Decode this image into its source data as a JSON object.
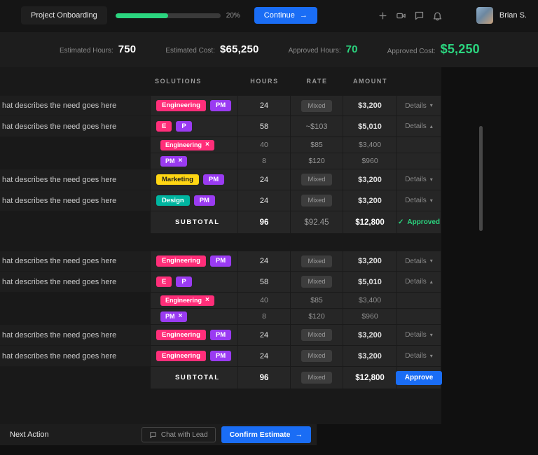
{
  "colors": {
    "accent_green": "#2bd57f",
    "accent_blue": "#1a6df5",
    "tag_pink": "#ff2e79",
    "tag_purple": "#9a3bf2",
    "tag_yellow": "#ffd613",
    "tag_teal": "#00b5a0",
    "badge_bg": "#3d3d3d"
  },
  "glyphs": {
    "arrow": "→",
    "chevron_down": "▾",
    "chevron_up": "▴",
    "close": "×",
    "check": "✓"
  },
  "topbar": {
    "project_label": "Project Onboarding",
    "progress_label": "20%",
    "continue_label": "Continue",
    "user_name": "Brian S."
  },
  "stats": [
    {
      "label": "Estimated Hours:",
      "value": "750"
    },
    {
      "label": "Estimated Cost:",
      "value": "$65,250"
    },
    {
      "label": "Approved Hours:",
      "value": "70"
    },
    {
      "label": "Approved Cost:",
      "value": "$5,250"
    }
  ],
  "table": {
    "headers": [
      "SOLUTIONS",
      "HOURS",
      "RATE",
      "AMOUNT"
    ],
    "groups": [
      {
        "rows": [
          {
            "description": "hat describes the need goes here",
            "tags": [
              {
                "label": "Engineering",
                "color": "pink"
              },
              {
                "label": "PM",
                "color": "purple"
              }
            ],
            "hours": "24",
            "rate": {
              "badge": "Mixed"
            },
            "amount": "$3,200",
            "details": {
              "label": "Details",
              "chevron": "down"
            }
          },
          {
            "description": "hat describes the need goes here",
            "tags": [
              {
                "label": "E",
                "color": "pink"
              },
              {
                "label": "P",
                "color": "purple"
              }
            ],
            "hours": "58",
            "rate": {
              "text": "~$103"
            },
            "amount": "$5,010",
            "details": {
              "label": "Details",
              "chevron": "up"
            },
            "subrows": [
              {
                "tag": {
                  "label": "Engineering",
                  "color": "pink",
                  "removable": true
                },
                "hours": "40",
                "rate": "$85",
                "amount": "$3,400"
              },
              {
                "tag": {
                  "label": "PM",
                  "color": "purple",
                  "removable": true
                },
                "hours": "8",
                "rate": "$120",
                "amount": "$960"
              }
            ]
          },
          {
            "description": "hat describes the need goes here",
            "tags": [
              {
                "label": "Marketing",
                "color": "yellow"
              },
              {
                "label": "PM",
                "color": "purple"
              }
            ],
            "hours": "24",
            "rate": {
              "badge": "Mixed"
            },
            "amount": "$3,200",
            "details": {
              "label": "Details",
              "chevron": "down"
            }
          },
          {
            "description": "hat describes the need goes here",
            "tags": [
              {
                "label": "Design",
                "color": "teal"
              },
              {
                "label": "PM",
                "color": "purple"
              }
            ],
            "hours": "24",
            "rate": {
              "badge": "Mixed"
            },
            "amount": "$3,200",
            "details": {
              "label": "Details",
              "chevron": "down"
            }
          }
        ],
        "subtotal": {
          "label": "SUBTOTAL",
          "hours": "96",
          "rate": {
            "text": "$92.45"
          },
          "amount": "$12,800",
          "status": "Approved"
        }
      },
      {
        "rows": [
          {
            "description": "hat describes the need goes here",
            "tags": [
              {
                "label": "Engineering",
                "color": "pink"
              },
              {
                "label": "PM",
                "color": "purple"
              }
            ],
            "hours": "24",
            "rate": {
              "badge": "Mixed"
            },
            "amount": "$3,200",
            "details": {
              "label": "Details",
              "chevron": "down"
            }
          },
          {
            "description": "hat describes the need goes here",
            "tags": [
              {
                "label": "E",
                "color": "pink"
              },
              {
                "label": "P",
                "color": "purple"
              }
            ],
            "hours": "58",
            "rate": {
              "badge": "Mixed"
            },
            "amount": "$5,010",
            "details": {
              "label": "Details",
              "chevron": "up"
            },
            "subrows": [
              {
                "tag": {
                  "label": "Engineering",
                  "color": "pink",
                  "removable": true
                },
                "hours": "40",
                "rate": "$85",
                "amount": "$3,400"
              },
              {
                "tag": {
                  "label": "PM",
                  "color": "purple",
                  "removable": true
                },
                "hours": "8",
                "rate": "$120",
                "amount": "$960"
              }
            ]
          },
          {
            "description": "hat describes the need goes here",
            "tags": [
              {
                "label": "Engineering",
                "color": "pink"
              },
              {
                "label": "PM",
                "color": "purple"
              }
            ],
            "hours": "24",
            "rate": {
              "badge": "Mixed"
            },
            "amount": "$3,200",
            "details": {
              "label": "Details",
              "chevron": "down"
            }
          },
          {
            "description": "hat describes the need goes here",
            "tags": [
              {
                "label": "Engineering",
                "color": "pink"
              },
              {
                "label": "PM",
                "color": "purple"
              }
            ],
            "hours": "24",
            "rate": {
              "badge": "Mixed"
            },
            "amount": "$3,200",
            "details": {
              "label": "Details",
              "chevron": "down"
            }
          }
        ],
        "subtotal": {
          "label": "SUBTOTAL",
          "hours": "96",
          "rate": {
            "badge": "Mixed"
          },
          "amount": "$12,800",
          "action": "Approve"
        }
      }
    ]
  },
  "footer": {
    "label": "Next Action",
    "chat_button": "Chat with Lead",
    "confirm_button": "Confirm Estimate"
  }
}
